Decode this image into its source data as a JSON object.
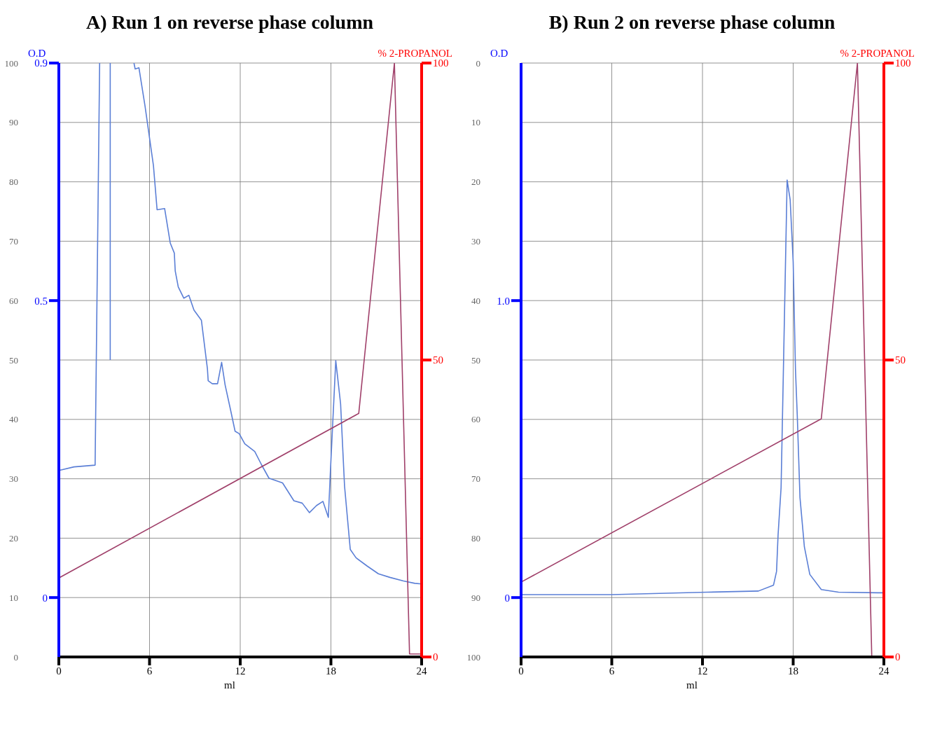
{
  "chart_data": [
    {
      "type": "line",
      "title": "A) Run 1 on reverse phase column",
      "xlabel": "ml",
      "ylabel": "O.D",
      "y2label": "% 2-PROPANOL",
      "xlim": [
        0,
        24
      ],
      "xticks": [
        0,
        6,
        12,
        18,
        24
      ],
      "ylim": [
        -0.1,
        0.9
      ],
      "yticks": [
        0,
        0.5,
        0.9
      ],
      "y2lim": [
        0,
        100
      ],
      "y2ticks": [
        0,
        50,
        100
      ],
      "y3lim": [
        0,
        100
      ],
      "y3ticks": [
        0,
        10,
        20,
        30,
        40,
        50,
        60,
        70,
        80,
        90,
        100
      ],
      "grid": true,
      "marker": "none",
      "line_style": "solid",
      "legend": false,
      "series": [
        {
          "color": "#5b7fd6",
          "axis": "y",
          "x": [
            0,
            1,
            2.4,
            2.7,
            3.0,
            3.4,
            3.4,
            4.2,
            4.97,
            5.05,
            5.3,
            5.7,
            6.26,
            6.5,
            7.0,
            7.37,
            7.64,
            7.7,
            7.9,
            8.27,
            8.6,
            8.94,
            9.43,
            9.83,
            9.88,
            10.15,
            10.5,
            10.77,
            11.0,
            11.36,
            11.66,
            11.93,
            12.3,
            12.96,
            13.4,
            13.9,
            14.8,
            15.55,
            16.1,
            16.58,
            17.05,
            17.47,
            17.83,
            17.97,
            18.32,
            18.64,
            18.9,
            19.28,
            19.66,
            20.4,
            21.14,
            21.9,
            22.8,
            23.55,
            24
          ],
          "values": [
            0.214,
            0.22,
            0.223,
            0.9,
            null,
            0.9,
            0.4,
            null,
            0.9,
            0.89,
            0.892,
            0.828,
            0.727,
            0.653,
            0.655,
            0.597,
            0.58,
            0.55,
            0.523,
            0.504,
            0.509,
            0.484,
            0.467,
            0.385,
            0.365,
            0.36,
            0.36,
            0.396,
            0.358,
            0.316,
            0.28,
            0.276,
            0.259,
            0.246,
            0.224,
            0.201,
            0.193,
            0.163,
            0.159,
            0.143,
            0.155,
            0.162,
            0.135,
            0.215,
            0.399,
            0.326,
            0.188,
            0.081,
            0.067,
            0.053,
            0.04,
            0.034,
            0.028,
            0.024,
            0.023
          ]
        },
        {
          "color": "#a0406a",
          "axis": "y2",
          "x": [
            0,
            19.84,
            22.2,
            23.2,
            24
          ],
          "values": [
            13.3,
            41,
            100,
            0.5,
            0.5
          ]
        }
      ]
    },
    {
      "type": "line",
      "title": "B) Run 2 on reverse phase column",
      "xlabel": "ml",
      "ylabel": "O.D",
      "y2label": "% 2-PROPANOL",
      "xlim": [
        0,
        24
      ],
      "xticks": [
        0,
        6,
        12,
        18,
        24
      ],
      "ylim": [
        -0.2,
        1.8
      ],
      "yticks": [
        0,
        {
          "value": 1,
          "label": "1.0"
        }
      ],
      "y2lim": [
        0,
        100
      ],
      "y2ticks": [
        0,
        50,
        100
      ],
      "y3lim": [
        100,
        0
      ],
      "y3ticks": [
        0,
        10,
        20,
        30,
        40,
        50,
        60,
        70,
        80,
        90,
        100
      ],
      "grid": true,
      "marker": "none",
      "line_style": "solid",
      "legend": false,
      "series": [
        {
          "color": "#5b7fd6",
          "axis": "y",
          "x": [
            0,
            6,
            12.3,
            15.7,
            16.7,
            16.9,
            17.0,
            17.2,
            17.6,
            17.8,
            18.0,
            18.15,
            18.27,
            18.45,
            18.74,
            19.1,
            19.86,
            21.0,
            23.6,
            24
          ],
          "values": [
            0.01,
            0.01,
            0.018,
            0.022,
            0.042,
            0.088,
            0.21,
            0.37,
            1.406,
            1.34,
            1.13,
            0.77,
            0.614,
            0.337,
            0.171,
            0.078,
            0.027,
            0.018,
            0.016,
            0.016
          ]
        },
        {
          "color": "#a0406a",
          "axis": "y2",
          "x": [
            0,
            19.86,
            22.25,
            23.2
          ],
          "values": [
            12.6,
            40.1,
            100,
            0
          ]
        }
      ]
    }
  ]
}
